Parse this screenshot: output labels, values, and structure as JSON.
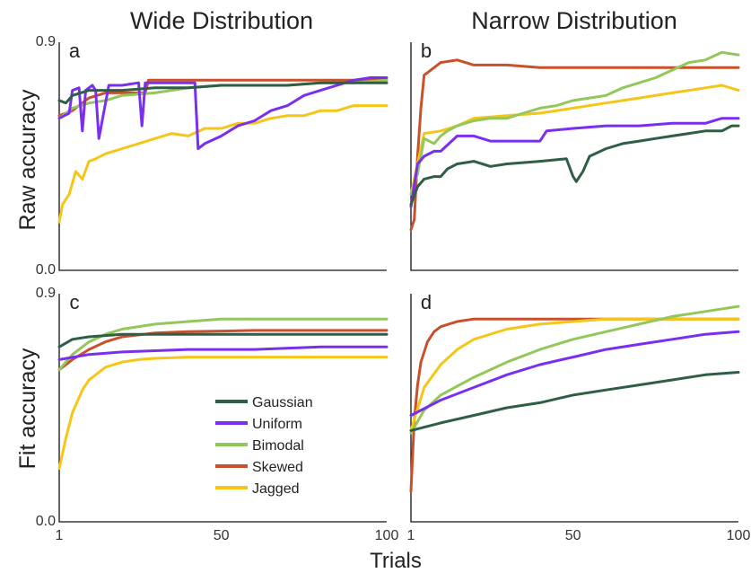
{
  "figure": {
    "col_titles": [
      "Wide Distribution",
      "Narrow Distribution"
    ],
    "row_labels": [
      "Raw accuracy",
      "Fit accuracy"
    ],
    "xlabel": "Trials"
  },
  "series_colors": {
    "Gaussian": "#2f5e46",
    "Uniform": "#7a2ff0",
    "Bimodal": "#93c75a",
    "Skewed": "#c8502a",
    "Jagged": "#f5c518"
  },
  "legend": [
    "Gaussian",
    "Uniform",
    "Bimodal",
    "Skewed",
    "Jagged"
  ],
  "chart_data": [
    {
      "panel": "a",
      "type": "line",
      "title": "Wide Distribution",
      "ylabel": "Raw accuracy",
      "xlabel": "",
      "xlim": [
        1,
        100
      ],
      "ylim": [
        0.0,
        0.9
      ],
      "xticks": [],
      "yticks": [
        "0.0",
        "0.9"
      ],
      "series": [
        {
          "name": "Gaussian",
          "x": [
            1,
            3,
            5,
            10,
            20,
            30,
            40,
            50,
            60,
            70,
            80,
            90,
            100
          ],
          "y": [
            0.67,
            0.66,
            0.69,
            0.71,
            0.71,
            0.72,
            0.72,
            0.73,
            0.73,
            0.73,
            0.74,
            0.74,
            0.74
          ]
        },
        {
          "name": "Uniform",
          "x": [
            1,
            4,
            5,
            7,
            8,
            9,
            11,
            12,
            13,
            16,
            18,
            20,
            25,
            26,
            27,
            30,
            40,
            42,
            43,
            45,
            50,
            55,
            60,
            65,
            70,
            75,
            80,
            85,
            90,
            95,
            100
          ],
          "y": [
            0.6,
            0.62,
            0.71,
            0.72,
            0.55,
            0.71,
            0.73,
            0.71,
            0.52,
            0.73,
            0.73,
            0.73,
            0.74,
            0.57,
            0.74,
            0.74,
            0.74,
            0.74,
            0.48,
            0.5,
            0.53,
            0.57,
            0.59,
            0.63,
            0.65,
            0.69,
            0.71,
            0.73,
            0.75,
            0.76,
            0.76
          ]
        },
        {
          "name": "Bimodal",
          "x": [
            1,
            5,
            10,
            15,
            20,
            30,
            40,
            50,
            60,
            70,
            80,
            90,
            100
          ],
          "y": [
            0.6,
            0.64,
            0.66,
            0.67,
            0.69,
            0.7,
            0.72,
            0.73,
            0.73,
            0.73,
            0.74,
            0.74,
            0.75
          ]
        },
        {
          "name": "Skewed",
          "x": [
            1,
            5,
            10,
            15,
            20,
            25,
            27,
            28,
            40,
            60,
            80,
            100
          ],
          "y": [
            0.61,
            0.63,
            0.68,
            0.7,
            0.7,
            0.7,
            0.7,
            0.75,
            0.75,
            0.75,
            0.75,
            0.75
          ]
        },
        {
          "name": "Jagged",
          "x": [
            1,
            2,
            4,
            6,
            8,
            10,
            12,
            15,
            20,
            25,
            30,
            35,
            40,
            45,
            50,
            55,
            60,
            65,
            70,
            75,
            80,
            85,
            90,
            95,
            100
          ],
          "y": [
            0.19,
            0.26,
            0.3,
            0.39,
            0.36,
            0.43,
            0.44,
            0.46,
            0.48,
            0.5,
            0.52,
            0.54,
            0.53,
            0.56,
            0.56,
            0.58,
            0.58,
            0.6,
            0.61,
            0.61,
            0.63,
            0.63,
            0.65,
            0.65,
            0.65
          ]
        }
      ]
    },
    {
      "panel": "b",
      "type": "line",
      "title": "Narrow Distribution",
      "ylabel": "",
      "xlabel": "",
      "xlim": [
        1,
        100
      ],
      "ylim": [
        0.0,
        0.9
      ],
      "xticks": [],
      "yticks": [],
      "series": [
        {
          "name": "Gaussian",
          "x": [
            1,
            3,
            5,
            8,
            10,
            12,
            15,
            20,
            25,
            30,
            40,
            48,
            50,
            51,
            53,
            55,
            60,
            65,
            70,
            75,
            80,
            85,
            90,
            95,
            98,
            100
          ],
          "y": [
            0.26,
            0.33,
            0.36,
            0.37,
            0.37,
            0.4,
            0.42,
            0.43,
            0.41,
            0.42,
            0.43,
            0.44,
            0.37,
            0.35,
            0.39,
            0.45,
            0.48,
            0.5,
            0.51,
            0.52,
            0.53,
            0.54,
            0.55,
            0.55,
            0.57,
            0.57
          ]
        },
        {
          "name": "Uniform",
          "x": [
            1,
            3,
            5,
            8,
            10,
            15,
            20,
            25,
            30,
            35,
            40,
            42,
            50,
            60,
            70,
            80,
            90,
            95,
            100
          ],
          "y": [
            0.25,
            0.42,
            0.45,
            0.47,
            0.47,
            0.53,
            0.53,
            0.51,
            0.51,
            0.51,
            0.51,
            0.55,
            0.56,
            0.57,
            0.57,
            0.58,
            0.58,
            0.6,
            0.6
          ]
        },
        {
          "name": "Bimodal",
          "x": [
            1,
            3,
            5,
            8,
            10,
            12,
            15,
            20,
            25,
            30,
            35,
            40,
            45,
            50,
            55,
            60,
            65,
            70,
            75,
            80,
            85,
            90,
            95,
            100
          ],
          "y": [
            0.3,
            0.38,
            0.52,
            0.5,
            0.53,
            0.55,
            0.57,
            0.59,
            0.6,
            0.6,
            0.62,
            0.64,
            0.65,
            0.67,
            0.68,
            0.69,
            0.72,
            0.74,
            0.76,
            0.79,
            0.82,
            0.83,
            0.86,
            0.85
          ]
        },
        {
          "name": "Skewed",
          "x": [
            1,
            2,
            3,
            4,
            5,
            6,
            10,
            15,
            20,
            30,
            40,
            60,
            80,
            100
          ],
          "y": [
            0.16,
            0.2,
            0.45,
            0.64,
            0.77,
            0.78,
            0.82,
            0.83,
            0.81,
            0.81,
            0.8,
            0.8,
            0.8,
            0.8
          ]
        },
        {
          "name": "Jagged",
          "x": [
            1,
            5,
            10,
            15,
            20,
            30,
            40,
            50,
            60,
            70,
            80,
            90,
            95,
            100
          ],
          "y": [
            0.3,
            0.54,
            0.55,
            0.57,
            0.6,
            0.61,
            0.62,
            0.64,
            0.66,
            0.68,
            0.7,
            0.72,
            0.73,
            0.71
          ]
        }
      ]
    },
    {
      "panel": "c",
      "type": "line",
      "title": "",
      "ylabel": "Fit accuracy",
      "xlabel": "",
      "xlim": [
        1,
        100
      ],
      "ylim": [
        0.0,
        0.9
      ],
      "xticks": [
        "1",
        "50",
        "100"
      ],
      "yticks": [
        "0.0",
        "0.9"
      ],
      "series": [
        {
          "name": "Gaussian",
          "x": [
            1,
            5,
            10,
            15,
            20,
            30,
            40,
            60,
            80,
            100
          ],
          "y": [
            0.69,
            0.72,
            0.73,
            0.735,
            0.74,
            0.74,
            0.74,
            0.74,
            0.74,
            0.74
          ]
        },
        {
          "name": "Uniform",
          "x": [
            1,
            10,
            20,
            40,
            60,
            80,
            100
          ],
          "y": [
            0.64,
            0.66,
            0.67,
            0.68,
            0.68,
            0.69,
            0.69
          ]
        },
        {
          "name": "Bimodal",
          "x": [
            1,
            5,
            10,
            15,
            20,
            30,
            40,
            50,
            60,
            80,
            100
          ],
          "y": [
            0.6,
            0.66,
            0.71,
            0.74,
            0.76,
            0.78,
            0.79,
            0.8,
            0.8,
            0.8,
            0.8
          ]
        },
        {
          "name": "Skewed",
          "x": [
            1,
            5,
            10,
            15,
            20,
            30,
            40,
            60,
            80,
            100
          ],
          "y": [
            0.6,
            0.64,
            0.68,
            0.71,
            0.73,
            0.745,
            0.75,
            0.755,
            0.755,
            0.755
          ]
        },
        {
          "name": "Jagged",
          "x": [
            1,
            3,
            5,
            8,
            10,
            15,
            20,
            25,
            30,
            40,
            50,
            60,
            80,
            100
          ],
          "y": [
            0.21,
            0.33,
            0.43,
            0.52,
            0.56,
            0.61,
            0.63,
            0.64,
            0.645,
            0.65,
            0.65,
            0.65,
            0.65,
            0.65
          ]
        }
      ]
    },
    {
      "panel": "d",
      "type": "line",
      "title": "",
      "ylabel": "",
      "xlabel": "Trials",
      "xlim": [
        1,
        100
      ],
      "ylim": [
        0.0,
        0.9
      ],
      "xticks": [
        "1",
        "50",
        "100"
      ],
      "yticks": [],
      "series": [
        {
          "name": "Gaussian",
          "x": [
            1,
            10,
            20,
            30,
            40,
            50,
            60,
            70,
            80,
            90,
            100
          ],
          "y": [
            0.36,
            0.39,
            0.42,
            0.45,
            0.47,
            0.5,
            0.52,
            0.54,
            0.56,
            0.58,
            0.59
          ]
        },
        {
          "name": "Uniform",
          "x": [
            1,
            10,
            20,
            30,
            40,
            50,
            60,
            70,
            80,
            90,
            100
          ],
          "y": [
            0.42,
            0.48,
            0.53,
            0.58,
            0.62,
            0.65,
            0.68,
            0.7,
            0.72,
            0.74,
            0.75
          ]
        },
        {
          "name": "Bimodal",
          "x": [
            1,
            5,
            10,
            20,
            30,
            40,
            50,
            60,
            70,
            80,
            90,
            100
          ],
          "y": [
            0.35,
            0.44,
            0.5,
            0.57,
            0.63,
            0.68,
            0.72,
            0.75,
            0.78,
            0.81,
            0.83,
            0.85
          ]
        },
        {
          "name": "Skewed",
          "x": [
            1,
            2,
            3,
            4,
            6,
            8,
            10,
            15,
            20,
            30,
            50,
            100
          ],
          "y": [
            0.12,
            0.4,
            0.54,
            0.63,
            0.71,
            0.75,
            0.77,
            0.79,
            0.8,
            0.8,
            0.8,
            0.8
          ]
        },
        {
          "name": "Jagged",
          "x": [
            1,
            5,
            10,
            15,
            20,
            30,
            40,
            50,
            60,
            80,
            100
          ],
          "y": [
            0.36,
            0.53,
            0.62,
            0.68,
            0.72,
            0.76,
            0.78,
            0.79,
            0.8,
            0.8,
            0.8
          ]
        }
      ]
    }
  ]
}
